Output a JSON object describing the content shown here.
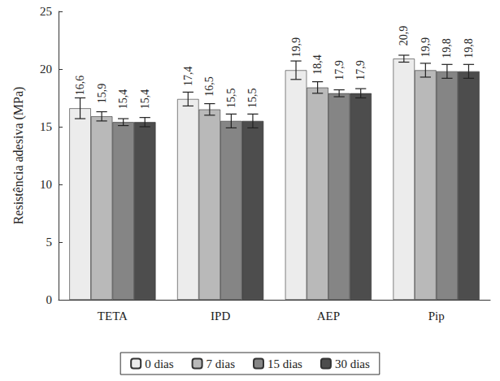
{
  "chart_data": {
    "type": "bar",
    "y_label": "Resistência adesiva (MPa)",
    "categories": [
      "TETA",
      "IPD",
      "AEP",
      "Pip"
    ],
    "series": [
      {
        "name": "0 dias",
        "color": "#ececec",
        "values": [
          16.6,
          17.4,
          19.9,
          20.9
        ],
        "value_labels": [
          "16,6",
          "17,4",
          "19,9",
          "20,9"
        ],
        "errors": [
          0.9,
          0.6,
          0.8,
          0.3
        ]
      },
      {
        "name": "7 dias",
        "color": "#b9b9b9",
        "values": [
          15.9,
          16.5,
          18.4,
          19.9
        ],
        "value_labels": [
          "15,9",
          "16,5",
          "18,4",
          "19,9"
        ],
        "errors": [
          0.4,
          0.5,
          0.5,
          0.6
        ]
      },
      {
        "name": "15 dias",
        "color": "#858585",
        "values": [
          15.4,
          15.5,
          17.9,
          19.8
        ],
        "value_labels": [
          "15,4",
          "15,5",
          "17,9",
          "19,8"
        ],
        "errors": [
          0.3,
          0.6,
          0.3,
          0.6
        ]
      },
      {
        "name": "30 dias",
        "color": "#4d4d4d",
        "values": [
          15.4,
          15.5,
          17.9,
          19.8
        ],
        "value_labels": [
          "15,4",
          "15,5",
          "17,9",
          "19,8"
        ],
        "errors": [
          0.4,
          0.6,
          0.4,
          0.6
        ]
      }
    ],
    "ylim": [
      0,
      25
    ],
    "yticks": [
      0,
      5,
      10,
      15,
      20,
      25
    ],
    "grid": false,
    "legend": "bottom",
    "data_labels": true
  }
}
